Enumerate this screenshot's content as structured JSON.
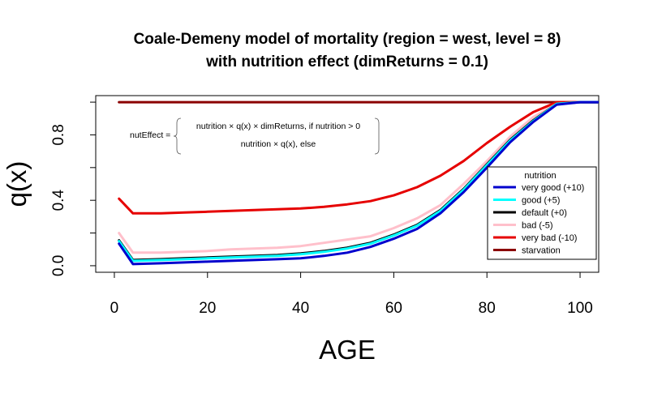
{
  "chart_data": {
    "type": "line",
    "title_line1": "Coale-Demeny model of mortality (region = west, level = 8)",
    "title_line2": "with nutrition effect (dimReturns = 0.1)",
    "xlabel": "AGE",
    "ylabel": "q(x)",
    "xlim": [
      -4,
      104
    ],
    "ylim": [
      -0.04,
      1.04
    ],
    "x_ticks": [
      0,
      20,
      40,
      60,
      80,
      100
    ],
    "y_ticks": [
      0.0,
      0.4,
      0.8
    ],
    "x_tick_labels": [
      "0",
      "20",
      "40",
      "60",
      "80",
      "100"
    ],
    "y_tick_labels": [
      "0.0",
      "0.4",
      "0.8"
    ],
    "grid": false,
    "legend": {
      "placement": "right",
      "title": "nutrition",
      "entries": [
        "very good (+10)",
        "good (+5)",
        "default (+0)",
        "bad (-5)",
        "very bad (-10)",
        "starvation"
      ]
    },
    "annotation": {
      "lhs": "nutEffect =",
      "case1": "nutrition × q(x) × dimReturns, if nutrition > 0",
      "case2": "nutrition × q(x), else"
    },
    "x": [
      1,
      4,
      10,
      15,
      20,
      25,
      30,
      35,
      40,
      45,
      50,
      55,
      60,
      65,
      70,
      75,
      80,
      85,
      90,
      95,
      100,
      104
    ],
    "series": [
      {
        "name": "starvation",
        "color": "#8b0000",
        "values": [
          1,
          1,
          1,
          1,
          1,
          1,
          1,
          1,
          1,
          1,
          1,
          1,
          1,
          1,
          1,
          1,
          1,
          1,
          1,
          1,
          1,
          1
        ]
      },
      {
        "name": "very bad (-10)",
        "color": "#e60000",
        "values": [
          0.41,
          0.32,
          0.32,
          0.325,
          0.33,
          0.335,
          0.34,
          0.345,
          0.35,
          0.36,
          0.375,
          0.395,
          0.43,
          0.48,
          0.55,
          0.64,
          0.75,
          0.85,
          0.94,
          1.0,
          1.0,
          1.0
        ]
      },
      {
        "name": "bad (-5)",
        "color": "#ffc0cb",
        "values": [
          0.2,
          0.08,
          0.08,
          0.085,
          0.09,
          0.1,
          0.105,
          0.11,
          0.12,
          0.14,
          0.16,
          0.18,
          0.23,
          0.29,
          0.37,
          0.5,
          0.64,
          0.79,
          0.91,
          0.99,
          1.0,
          1.0
        ]
      },
      {
        "name": "default (+0)",
        "color": "#000000",
        "values": [
          0.155,
          0.035,
          0.04,
          0.045,
          0.05,
          0.055,
          0.06,
          0.065,
          0.075,
          0.09,
          0.11,
          0.14,
          0.19,
          0.25,
          0.34,
          0.47,
          0.62,
          0.77,
          0.89,
          0.99,
          1.0,
          1.0
        ]
      },
      {
        "name": "good (+5)",
        "color": "#00ffff",
        "values": [
          0.15,
          0.03,
          0.035,
          0.04,
          0.045,
          0.05,
          0.055,
          0.06,
          0.07,
          0.085,
          0.105,
          0.135,
          0.185,
          0.245,
          0.335,
          0.465,
          0.615,
          0.765,
          0.885,
          0.99,
          1.0,
          1.0
        ]
      },
      {
        "name": "very good (+10)",
        "color": "#0000cd",
        "values": [
          0.135,
          0.01,
          0.015,
          0.02,
          0.025,
          0.03,
          0.035,
          0.04,
          0.045,
          0.06,
          0.08,
          0.115,
          0.165,
          0.225,
          0.32,
          0.45,
          0.6,
          0.755,
          0.88,
          0.985,
          1.0,
          1.0
        ]
      }
    ]
  }
}
